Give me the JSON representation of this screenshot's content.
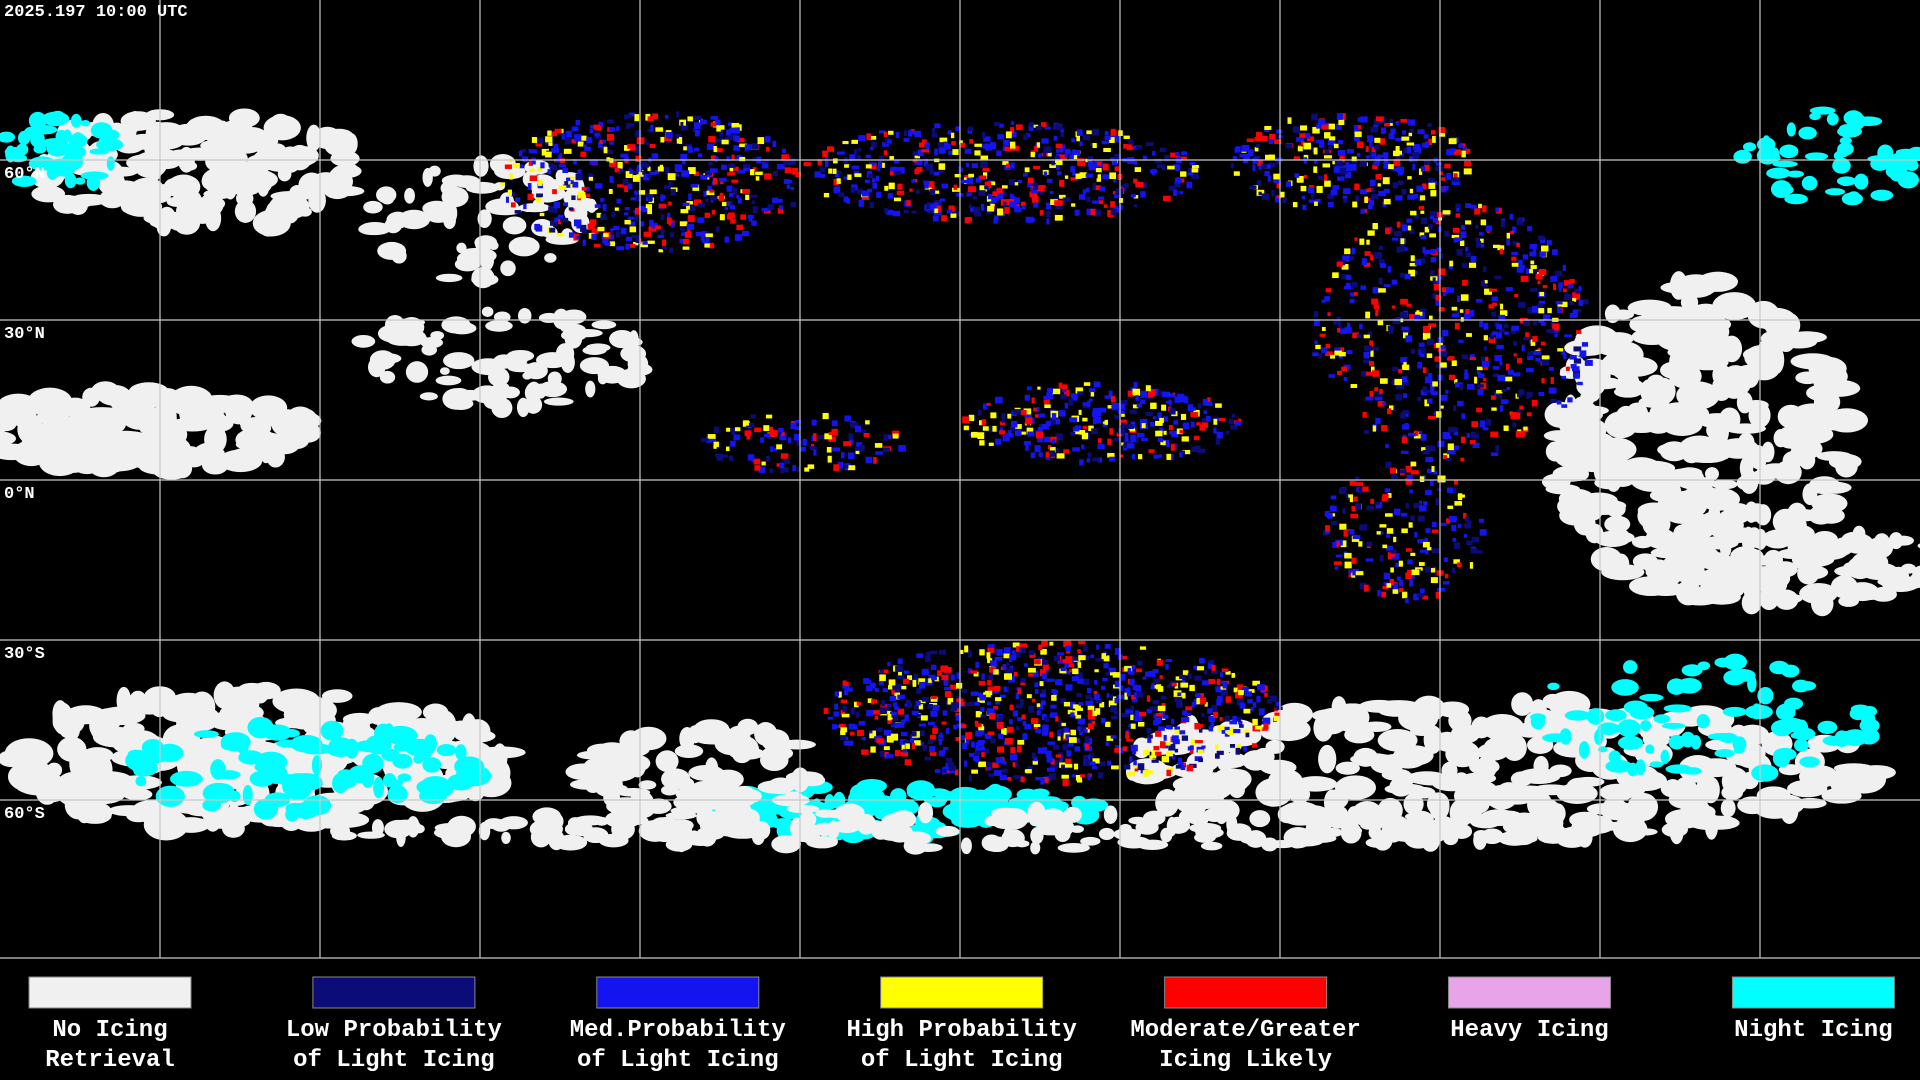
{
  "header": {
    "timestamp": "2025.197 10:00 UTC"
  },
  "map": {
    "latitude_labels": [
      "60°N",
      "30°N",
      "0°N",
      "30°S",
      "60°S"
    ]
  },
  "legend": [
    {
      "color": "#f0f0f0",
      "label": [
        "No Icing",
        "Retrieval"
      ]
    },
    {
      "color": "#0c0c78",
      "label": [
        "Low Probability",
        "of Light Icing"
      ]
    },
    {
      "color": "#1414f0",
      "label": [
        "Med.Probability",
        "of Light Icing"
      ]
    },
    {
      "color": "#ffff00",
      "label": [
        "High Probability",
        "of Light Icing"
      ]
    },
    {
      "color": "#ff0000",
      "label": [
        "Moderate/Greater",
        "Icing Likely"
      ]
    },
    {
      "color": "#e8a4e8",
      "label": [
        "Heavy Icing",
        ""
      ]
    },
    {
      "color": "#00ffff",
      "label": [
        "Night Icing",
        ""
      ]
    }
  ]
}
